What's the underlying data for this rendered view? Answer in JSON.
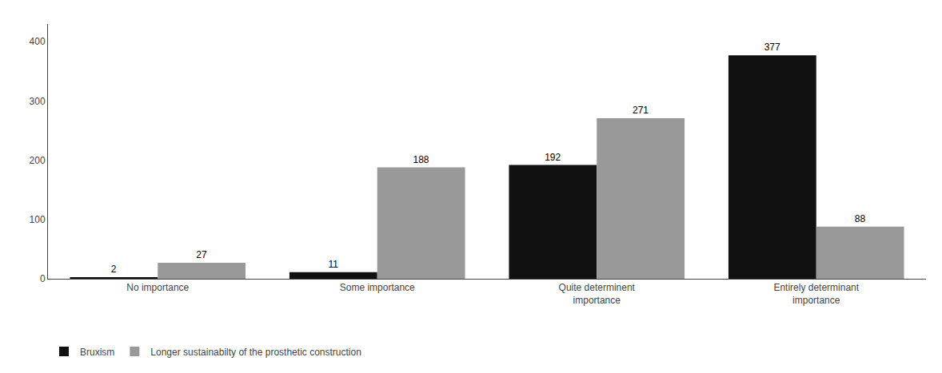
{
  "chart_data": {
    "type": "bar",
    "categories": [
      "No importance",
      "Some importance",
      "Quite determinent\nimportance",
      "Entirely determinant\nimportance"
    ],
    "series": [
      {
        "name": "Bruxism",
        "color": "#111111",
        "values": [
          2,
          11,
          192,
          377
        ]
      },
      {
        "name": "Longer sustainabilty of the prosthetic construction",
        "color": "#999999",
        "values": [
          27,
          188,
          271,
          88
        ]
      }
    ],
    "ylim": [
      0,
      430
    ],
    "yticks": [
      0,
      100,
      200,
      300,
      400
    ],
    "grid": false,
    "data_labels": true,
    "legend": "bottom left"
  }
}
